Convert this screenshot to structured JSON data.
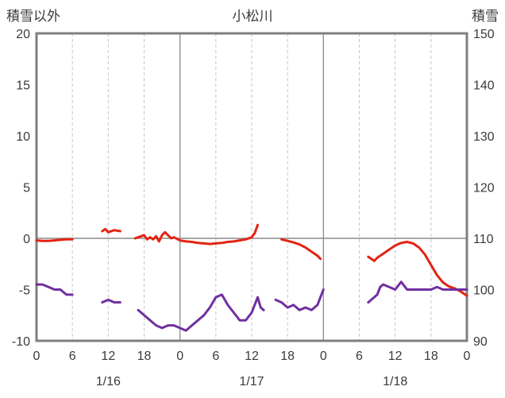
{
  "chart_data": {
    "type": "line",
    "title": "小松川",
    "left_axis": {
      "label": "積雪以外",
      "min": -10,
      "max": 20,
      "tick_step": 5,
      "ticks": [
        20,
        15,
        10,
        5,
        0,
        -5,
        -10
      ]
    },
    "right_axis": {
      "label": "積雪",
      "min": 90,
      "max": 150,
      "tick_step": 10,
      "ticks": [
        150,
        140,
        130,
        120,
        110,
        100,
        90
      ]
    },
    "x_axis": {
      "min_hour": 0,
      "max_hour": 72,
      "ticks": [
        {
          "hour": 0,
          "label": "0"
        },
        {
          "hour": 6,
          "label": "6"
        },
        {
          "hour": 12,
          "label": "12"
        },
        {
          "hour": 18,
          "label": "18"
        },
        {
          "hour": 24,
          "label": "0"
        },
        {
          "hour": 30,
          "label": "6"
        },
        {
          "hour": 36,
          "label": "12"
        },
        {
          "hour": 42,
          "label": "18"
        },
        {
          "hour": 48,
          "label": "0"
        },
        {
          "hour": 54,
          "label": "6"
        },
        {
          "hour": 60,
          "label": "12"
        },
        {
          "hour": 66,
          "label": "18"
        },
        {
          "hour": 72,
          "label": "0"
        }
      ],
      "day_boundaries": [
        24,
        48
      ],
      "date_labels": [
        {
          "hour": 12,
          "label": "1/16"
        },
        {
          "hour": 36,
          "label": "1/17"
        },
        {
          "hour": 60,
          "label": "1/18"
        }
      ]
    },
    "grid": {
      "vertical_minor_dashed": true,
      "zero_line": true,
      "legend": "none"
    },
    "frame_color": "#7f7f7f",
    "grid_color": "#c6c6c6",
    "grid_major_color": "#8c8c8c",
    "text_color": "#3a3a3a",
    "background": "#ffffff",
    "series": [
      {
        "name": "積雪以外",
        "axis": "left",
        "color": "#e42313",
        "segments": [
          [
            [
              0,
              -0.2
            ],
            [
              1,
              -0.25
            ],
            [
              2,
              -0.25
            ],
            [
              3,
              -0.2
            ],
            [
              4,
              -0.15
            ],
            [
              5,
              -0.1
            ],
            [
              6,
              -0.1
            ]
          ],
          [
            [
              11,
              0.7
            ],
            [
              11.5,
              0.9
            ],
            [
              12,
              0.6
            ],
            [
              13,
              0.8
            ],
            [
              14,
              0.7
            ]
          ],
          [
            [
              16.5,
              0.0
            ],
            [
              17,
              0.1
            ],
            [
              18,
              0.3
            ],
            [
              18.5,
              -0.1
            ],
            [
              19,
              0.1
            ],
            [
              19.5,
              -0.1
            ],
            [
              20,
              0.2
            ],
            [
              20.5,
              -0.3
            ],
            [
              21,
              0.3
            ],
            [
              21.5,
              0.6
            ],
            [
              22,
              0.3
            ],
            [
              22.5,
              0.0
            ],
            [
              23,
              0.1
            ],
            [
              24,
              -0.2
            ],
            [
              25,
              -0.3
            ],
            [
              26,
              -0.35
            ],
            [
              27,
              -0.45
            ],
            [
              28,
              -0.5
            ],
            [
              29,
              -0.55
            ],
            [
              30,
              -0.5
            ],
            [
              31,
              -0.45
            ],
            [
              32,
              -0.35
            ],
            [
              33,
              -0.3
            ],
            [
              34,
              -0.2
            ],
            [
              35,
              -0.1
            ],
            [
              36,
              0.1
            ],
            [
              36.5,
              0.5
            ],
            [
              37,
              1.3
            ]
          ],
          [
            [
              41,
              -0.1
            ],
            [
              42,
              -0.25
            ],
            [
              43,
              -0.4
            ],
            [
              44,
              -0.6
            ],
            [
              45,
              -0.9
            ],
            [
              46,
              -1.3
            ],
            [
              47,
              -1.7
            ],
            [
              47.5,
              -2.0
            ]
          ],
          [
            [
              55.5,
              -1.8
            ],
            [
              56,
              -2.0
            ],
            [
              56.5,
              -2.2
            ],
            [
              57,
              -1.9
            ],
            [
              58,
              -1.5
            ],
            [
              59,
              -1.1
            ],
            [
              60,
              -0.7
            ],
            [
              61,
              -0.45
            ],
            [
              62,
              -0.35
            ],
            [
              63,
              -0.5
            ],
            [
              64,
              -0.9
            ],
            [
              65,
              -1.6
            ],
            [
              66,
              -2.6
            ],
            [
              67,
              -3.6
            ],
            [
              68,
              -4.3
            ],
            [
              69,
              -4.7
            ],
            [
              70,
              -4.9
            ],
            [
              71,
              -5.2
            ],
            [
              72,
              -5.6
            ]
          ]
        ]
      },
      {
        "name": "積雪",
        "axis": "right",
        "color": "#7030a0",
        "segments": [
          [
            [
              0,
              101
            ],
            [
              1,
              101
            ],
            [
              2,
              100.5
            ],
            [
              3,
              100
            ],
            [
              4,
              100
            ],
            [
              5,
              99
            ],
            [
              6,
              99
            ]
          ],
          [
            [
              11,
              97.5
            ],
            [
              12,
              98
            ],
            [
              13,
              97.5
            ],
            [
              14,
              97.5
            ]
          ],
          [
            [
              17,
              96
            ],
            [
              18,
              95
            ],
            [
              19,
              94
            ],
            [
              20,
              93
            ],
            [
              21,
              92.5
            ],
            [
              22,
              93
            ],
            [
              23,
              93
            ],
            [
              24,
              92.5
            ],
            [
              25,
              92
            ],
            [
              26,
              93
            ],
            [
              27,
              94
            ],
            [
              28,
              95
            ],
            [
              29,
              96.5
            ],
            [
              30,
              98.5
            ],
            [
              31,
              99
            ],
            [
              32,
              97
            ],
            [
              33,
              95.5
            ],
            [
              34,
              94
            ],
            [
              35,
              94
            ],
            [
              36,
              95.5
            ],
            [
              37,
              98.5
            ],
            [
              37.5,
              96.5
            ],
            [
              38,
              96
            ]
          ],
          [
            [
              40,
              98
            ],
            [
              41,
              97.5
            ],
            [
              42,
              96.5
            ],
            [
              43,
              97
            ],
            [
              44,
              96
            ],
            [
              45,
              96.5
            ],
            [
              46,
              96
            ],
            [
              47,
              97
            ],
            [
              48,
              100
            ]
          ],
          [
            [
              55.5,
              97.5
            ],
            [
              56,
              98
            ],
            [
              57,
              99
            ],
            [
              57.5,
              100.5
            ],
            [
              58,
              101
            ],
            [
              59,
              100.5
            ],
            [
              60,
              100
            ],
            [
              61,
              101.5
            ],
            [
              62,
              100
            ],
            [
              63,
              100
            ],
            [
              64,
              100
            ],
            [
              65,
              100
            ],
            [
              66,
              100
            ],
            [
              67,
              100.5
            ],
            [
              68,
              100
            ],
            [
              69,
              100
            ],
            [
              70,
              100
            ],
            [
              71,
              100
            ],
            [
              72,
              100
            ]
          ]
        ]
      }
    ]
  }
}
